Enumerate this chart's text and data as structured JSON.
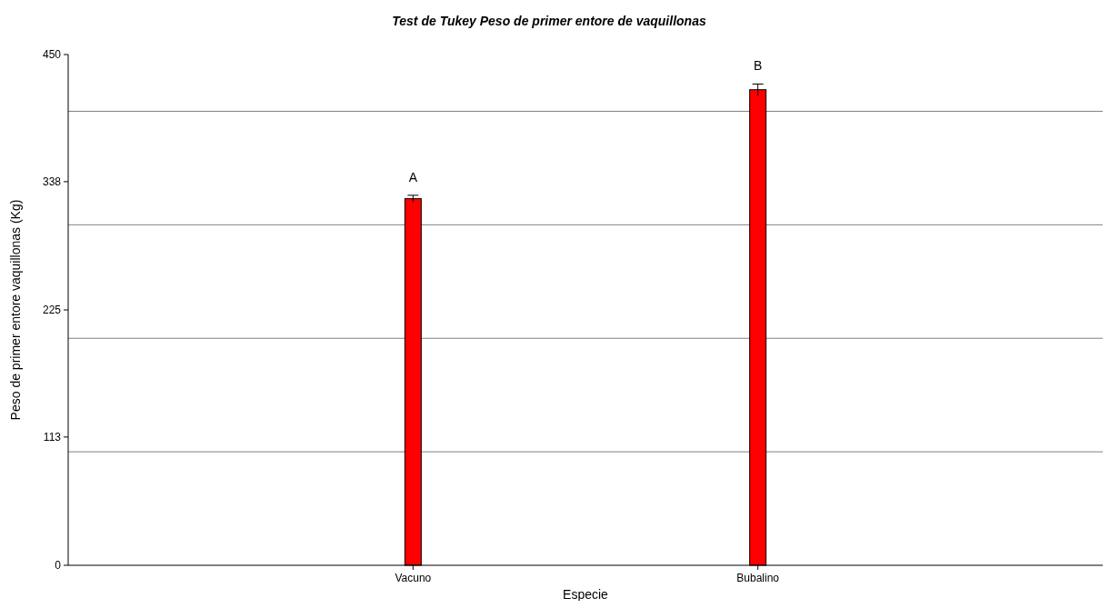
{
  "chart_data": {
    "type": "bar",
    "title": "Test de Tukey Peso de primer entore de vaquillonas",
    "xlabel": "Especie",
    "ylabel": "Peso de primer entore vaquillonas (Kg)",
    "categories": [
      "Vacuno",
      "Bubalino"
    ],
    "values": [
      323,
      419
    ],
    "errors": [
      3,
      5
    ],
    "color": "#ff0000",
    "ylim": [
      0,
      450
    ],
    "yticks": [
      0,
      113,
      225,
      338,
      450
    ],
    "grid": false,
    "ref_lines": [
      {
        "axis": "y",
        "value": 100,
        "color": "#808080"
      },
      {
        "axis": "y",
        "value": 200,
        "color": "#808080"
      },
      {
        "axis": "y",
        "value": 300,
        "color": "#808080"
      },
      {
        "axis": "y",
        "value": 400,
        "color": "#808080"
      }
    ],
    "annotations": [
      "A",
      "B"
    ]
  }
}
